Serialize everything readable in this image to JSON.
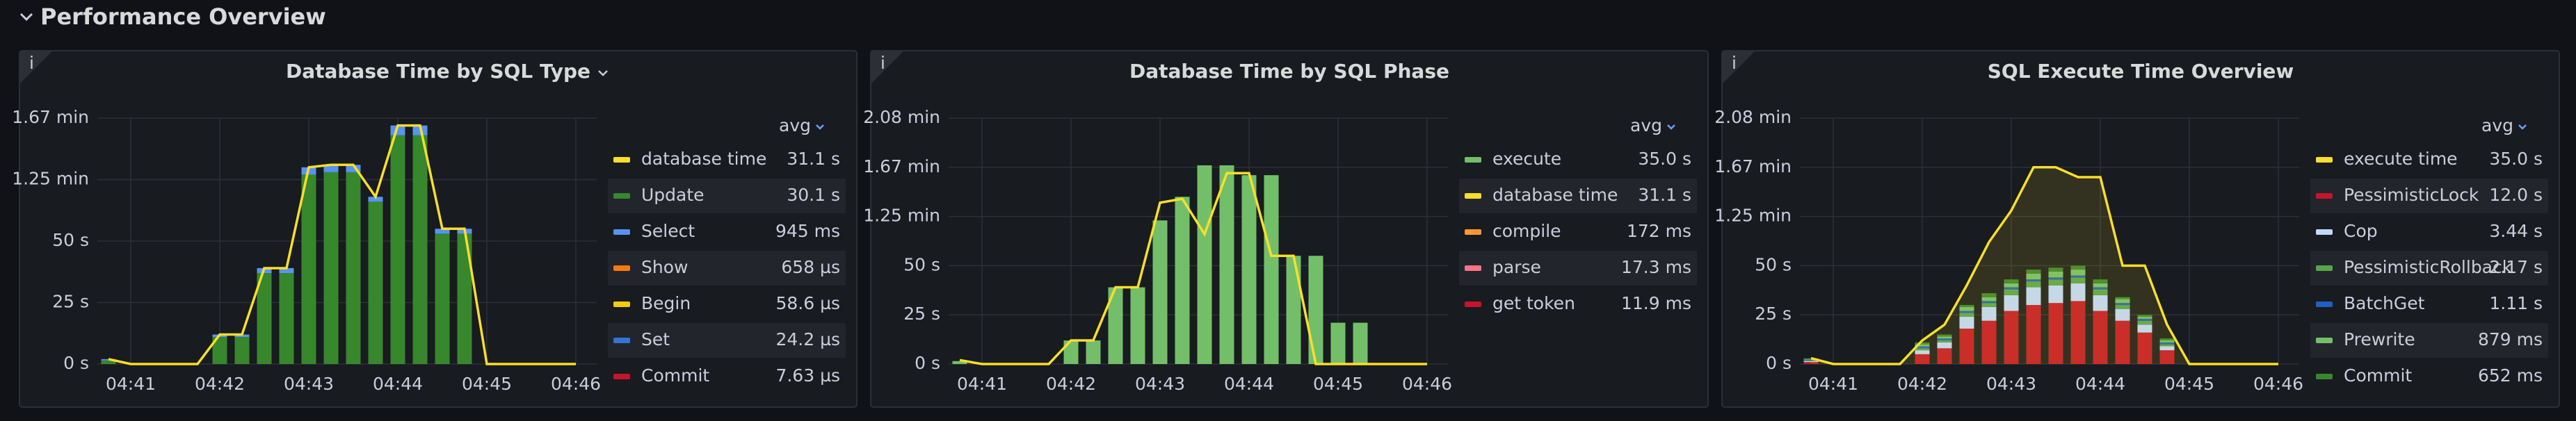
{
  "header": {
    "title": "Performance Overview"
  },
  "chart_data": [
    {
      "type": "bar",
      "title": "Database Time by SQL Type",
      "grid": true,
      "legend_position": "right",
      "legend_header": "avg",
      "categories": [
        null,
        "04:41",
        null,
        null,
        null,
        "04:42",
        null,
        null,
        null,
        "04:43",
        null,
        null,
        null,
        "04:44",
        null,
        null,
        null,
        "04:45",
        null,
        null,
        null,
        "04:46"
      ],
      "ylim": [
        0,
        100
      ],
      "yticks": [
        {
          "value": 0,
          "label": "0 s"
        },
        {
          "value": 25,
          "label": "25 s"
        },
        {
          "value": 50,
          "label": "50 s"
        },
        {
          "value": 75,
          "label": "1.25 min"
        },
        {
          "value": 100,
          "label": "1.67 min"
        }
      ],
      "series": [
        {
          "name": "database time",
          "kind": "line",
          "color": "#fade2a",
          "legend_value": "31.1 s",
          "values": [
            2,
            0,
            0,
            0,
            0,
            12,
            12,
            39,
            39,
            80,
            81,
            81,
            68,
            97,
            97,
            55,
            55,
            0,
            0,
            0,
            0,
            0
          ]
        },
        {
          "name": "Update",
          "kind": "bar",
          "color": "#37872d",
          "legend_value": "30.1 s",
          "values": [
            1.5,
            null,
            null,
            null,
            null,
            11,
            11,
            37,
            37,
            77,
            78,
            78,
            66,
            93,
            93,
            53,
            53,
            null,
            null,
            null,
            null,
            null
          ]
        },
        {
          "name": "Select",
          "kind": "bar",
          "color": "#5794f2",
          "legend_value": "945 ms",
          "values": [
            0.5,
            null,
            null,
            null,
            null,
            1,
            1,
            2,
            2,
            3,
            3,
            3,
            2,
            4,
            4,
            2,
            2,
            null,
            null,
            null,
            null,
            null
          ]
        },
        {
          "name": "Show",
          "kind": "bar",
          "color": "#ff780a",
          "legend_value": "658 µs",
          "values": [
            0,
            null,
            null,
            null,
            null,
            0,
            0,
            0,
            0,
            0,
            0,
            0,
            0,
            0,
            0,
            0,
            0,
            null,
            null,
            null,
            null,
            null
          ]
        },
        {
          "name": "Begin",
          "kind": "bar",
          "color": "#f2cc0c",
          "legend_value": "58.6 µs",
          "values": [
            0,
            null,
            null,
            null,
            null,
            0,
            0,
            0,
            0,
            0,
            0,
            0,
            0,
            0,
            0,
            0,
            0,
            null,
            null,
            null,
            null,
            null
          ]
        },
        {
          "name": "Set",
          "kind": "bar",
          "color": "#3274d9",
          "legend_value": "24.2 µs",
          "values": [
            0,
            null,
            null,
            null,
            null,
            0,
            0,
            0,
            0,
            0,
            0,
            0,
            0,
            0,
            0,
            0,
            0,
            null,
            null,
            null,
            null,
            null
          ]
        },
        {
          "name": "Commit",
          "kind": "bar",
          "color": "#c4162a",
          "legend_value": "7.63 µs",
          "values": [
            0,
            null,
            null,
            null,
            null,
            0,
            0,
            0,
            0,
            0,
            0,
            0,
            0,
            0,
            0,
            0,
            0,
            null,
            null,
            null,
            null,
            null
          ]
        }
      ]
    },
    {
      "type": "bar",
      "title": "Database Time by SQL Phase",
      "grid": true,
      "legend_position": "right",
      "legend_header": "avg",
      "categories": [
        null,
        "04:41",
        null,
        null,
        null,
        "04:42",
        null,
        null,
        null,
        "04:43",
        null,
        null,
        null,
        "04:44",
        null,
        null,
        null,
        "04:45",
        null,
        null,
        null,
        "04:46"
      ],
      "ylim": [
        0,
        125
      ],
      "yticks": [
        {
          "value": 0,
          "label": "0 s"
        },
        {
          "value": 25,
          "label": "25 s"
        },
        {
          "value": 50,
          "label": "50 s"
        },
        {
          "value": 75,
          "label": "1.25 min"
        },
        {
          "value": 100,
          "label": "1.67 min"
        },
        {
          "value": 125,
          "label": "2.08 min"
        }
      ],
      "series": [
        {
          "name": "execute",
          "kind": "bar",
          "color": "#73bf69",
          "legend_value": "35.0 s",
          "values": [
            1.5,
            null,
            null,
            null,
            null,
            12,
            12,
            39,
            39,
            73,
            85,
            101,
            101,
            96,
            96,
            55,
            55,
            21,
            21,
            null,
            null,
            null
          ]
        },
        {
          "name": "database time",
          "kind": "line",
          "color": "#fade2a",
          "legend_value": "31.1 s",
          "values": [
            2,
            0,
            0,
            0,
            0,
            12,
            12,
            39,
            39,
            82,
            84,
            66,
            97,
            97,
            55,
            55,
            0,
            0,
            0,
            0,
            0,
            0
          ]
        },
        {
          "name": "compile",
          "kind": "bar",
          "color": "#ff9830",
          "legend_value": "172 ms",
          "values": [
            0,
            null,
            null,
            null,
            null,
            0,
            0,
            0,
            0,
            0,
            0,
            0,
            0,
            0,
            0,
            0,
            0,
            null,
            null,
            null,
            null,
            null
          ]
        },
        {
          "name": "parse",
          "kind": "bar",
          "color": "#ff7383",
          "legend_value": "17.3 ms",
          "values": [
            0,
            null,
            null,
            null,
            null,
            0,
            0,
            0,
            0,
            0,
            0,
            0,
            0,
            0,
            0,
            0,
            0,
            null,
            null,
            null,
            null,
            null
          ]
        },
        {
          "name": "get token",
          "kind": "bar",
          "color": "#c4162a",
          "legend_value": "11.9 ms",
          "values": [
            0,
            null,
            null,
            null,
            null,
            0,
            0,
            0,
            0,
            0,
            0,
            0,
            0,
            0,
            0,
            0,
            0,
            null,
            null,
            null,
            null,
            null
          ]
        }
      ]
    },
    {
      "type": "bar",
      "title": "SQL Execute Time Overview",
      "grid": true,
      "legend_position": "right",
      "legend_header": "avg",
      "categories": [
        null,
        "04:41",
        null,
        null,
        null,
        "04:42",
        null,
        null,
        null,
        "04:43",
        null,
        null,
        null,
        "04:44",
        null,
        null,
        null,
        "04:45",
        null,
        null,
        null,
        "04:46"
      ],
      "ylim": [
        0,
        125
      ],
      "yticks": [
        {
          "value": 0,
          "label": "0 s"
        },
        {
          "value": 25,
          "label": "25 s"
        },
        {
          "value": 50,
          "label": "50 s"
        },
        {
          "value": 75,
          "label": "1.25 min"
        },
        {
          "value": 100,
          "label": "1.67 min"
        },
        {
          "value": 125,
          "label": "2.08 min"
        }
      ],
      "series": [
        {
          "name": "execute time",
          "kind": "area",
          "color": "#fade2a",
          "legend_value": "35.0 s",
          "values": [
            3,
            0,
            0,
            0,
            0,
            12,
            20,
            40,
            62,
            78,
            100,
            100,
            95,
            95,
            50,
            50,
            20,
            0,
            0,
            0,
            0,
            0
          ]
        },
        {
          "name": "PessimisticLock",
          "kind": "bar",
          "color": "#c4162a",
          "legend_value": "12.0 s",
          "values": [
            1,
            null,
            null,
            null,
            null,
            5,
            8,
            18,
            22,
            27,
            30,
            31,
            32,
            27,
            22,
            16,
            7,
            null,
            null,
            null,
            null,
            null
          ]
        },
        {
          "name": "Cop",
          "kind": "bar",
          "color": "#c0d8ff",
          "legend_value": "3.44 s",
          "values": [
            0.5,
            null,
            null,
            null,
            null,
            2,
            3,
            6,
            7,
            8,
            9,
            9,
            9,
            8,
            6,
            4,
            2,
            null,
            null,
            null,
            null,
            null
          ]
        },
        {
          "name": "PessimisticRollback",
          "kind": "bar",
          "color": "#56a64b",
          "legend_value": "2.17 s",
          "values": [
            0.5,
            null,
            null,
            null,
            null,
            1,
            1,
            2,
            2,
            3,
            3,
            3,
            3,
            3,
            2,
            2,
            1,
            null,
            null,
            null,
            null,
            null
          ]
        },
        {
          "name": "BatchGet",
          "kind": "bar",
          "color": "#1f60c4",
          "legend_value": "1.11 s",
          "values": [
            0.3,
            null,
            null,
            null,
            null,
            1,
            1,
            1,
            1,
            1,
            1,
            1,
            1,
            1,
            1,
            1,
            1,
            null,
            null,
            null,
            null,
            null
          ]
        },
        {
          "name": "Prewrite",
          "kind": "bar",
          "color": "#73bf69",
          "legend_value": "879 ms",
          "values": [
            0.3,
            null,
            null,
            null,
            null,
            1,
            1,
            2,
            2,
            2,
            3,
            3,
            3,
            2,
            2,
            1,
            1,
            null,
            null,
            null,
            null,
            null
          ]
        },
        {
          "name": "Commit",
          "kind": "bar",
          "color": "#37872d",
          "legend_value": "652 ms",
          "values": [
            0.3,
            null,
            null,
            null,
            null,
            1,
            1,
            1,
            2,
            2,
            2,
            2,
            2,
            2,
            1,
            1,
            1,
            null,
            null,
            null,
            null,
            null
          ]
        }
      ]
    }
  ]
}
